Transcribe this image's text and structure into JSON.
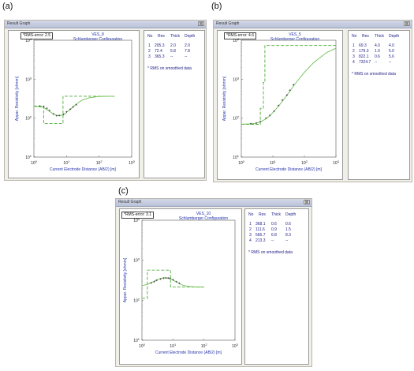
{
  "colors": {
    "curve": "#6bbf4e",
    "model": "#4fae3a",
    "points": "#333333",
    "text_blue": "#2233aa"
  },
  "icons": {
    "close": "close-icon"
  },
  "panels": [
    {
      "letter": "(a)",
      "window_title": "Result Graph",
      "close_glyph": "⊠",
      "rms": "*RMS-error:  2.5",
      "ves_title": "VES_8",
      "config": "Schlumberger Configuration",
      "table": {
        "headers": [
          "No",
          "Res",
          "Thick",
          "Depth"
        ],
        "rows": [
          [
            "1",
            "205.3",
            "2.0",
            "2.0"
          ],
          [
            "2",
            "72.4",
            "5.8",
            "7.8"
          ],
          [
            "3",
            "365.3",
            "--",
            "--"
          ]
        ],
        "note": "* RMS on smoothed data"
      },
      "chart_data": {
        "type": "line",
        "xlabel": "Current Electrode Distance (AB/2) [m]",
        "ylabel": "Appar. Resistivity [ohmm]",
        "x_scale": "log",
        "y_scale": "log",
        "xlim": [
          1,
          1000
        ],
        "ylim": [
          10,
          10000
        ],
        "x_ticks": [
          "10^0",
          "10^1",
          "10^2",
          "10^3"
        ],
        "y_ticks": [
          "10^1",
          "10^2",
          "10^3",
          "10^4"
        ],
        "model_steps": [
          [
            1,
            205.3
          ],
          [
            2.0,
            205.3
          ],
          [
            2.0,
            72.4
          ],
          [
            7.8,
            72.4
          ],
          [
            7.8,
            365.3
          ],
          [
            300,
            365.3
          ]
        ],
        "smooth_curve": [
          [
            1,
            200
          ],
          [
            1.5,
            198
          ],
          [
            2,
            188
          ],
          [
            3,
            150
          ],
          [
            4,
            128
          ],
          [
            5,
            118
          ],
          [
            6,
            115
          ],
          [
            8,
            122
          ],
          [
            10,
            140
          ],
          [
            15,
            185
          ],
          [
            20,
            230
          ],
          [
            30,
            290
          ],
          [
            50,
            335
          ],
          [
            100,
            360
          ],
          [
            300,
            365
          ]
        ],
        "observed": [
          [
            1.5,
            205
          ],
          [
            2,
            200
          ],
          [
            2.5,
            180
          ],
          [
            3,
            158
          ],
          [
            4,
            128
          ],
          [
            5,
            115
          ],
          [
            6,
            118
          ],
          [
            8,
            125
          ],
          [
            10,
            145
          ],
          [
            13,
            170
          ],
          [
            16,
            195
          ],
          [
            20,
            220
          ]
        ]
      }
    },
    {
      "letter": "(b)",
      "window_title": "Result Graph",
      "close_glyph": "⊠",
      "rms": "*RMS-error:  4.6",
      "ves_title": "VES_5",
      "config": "Schlumberger Configuration",
      "table": {
        "headers": [
          "No",
          "Res",
          "Thick",
          "Depth"
        ],
        "rows": [
          [
            "1",
            "69.3",
            "4.0",
            "4.0"
          ],
          [
            "2",
            "179.3",
            "1.0",
            "5.0"
          ],
          [
            "3",
            "822.1",
            "0.6",
            "5.6"
          ],
          [
            "4",
            "7324.7",
            "--",
            "--"
          ]
        ],
        "note": "* RMS on smoothed data"
      },
      "chart_data": {
        "type": "line",
        "xlabel": "Current Electrode Distance (AB/2) [m]",
        "ylabel": "Appar. Resistivity [ohmm]",
        "x_scale": "log",
        "y_scale": "log",
        "xlim": [
          1,
          1000
        ],
        "ylim": [
          10,
          10000
        ],
        "x_ticks": [
          "10^0",
          "10^1",
          "10^2",
          "10^3"
        ],
        "y_ticks": [
          "10^1",
          "10^2",
          "10^3",
          "10^4"
        ],
        "model_steps": [
          [
            1,
            69.3
          ],
          [
            4.0,
            69.3
          ],
          [
            4.0,
            179.3
          ],
          [
            5.0,
            179.3
          ],
          [
            5.0,
            822.1
          ],
          [
            5.6,
            822.1
          ],
          [
            5.6,
            7324.7
          ],
          [
            1000,
            7324.7
          ]
        ],
        "smooth_curve": [
          [
            1,
            70
          ],
          [
            2,
            71
          ],
          [
            3,
            74
          ],
          [
            4,
            80
          ],
          [
            6,
            95
          ],
          [
            8,
            115
          ],
          [
            10,
            140
          ],
          [
            15,
            200
          ],
          [
            20,
            270
          ],
          [
            30,
            420
          ],
          [
            50,
            750
          ],
          [
            100,
            1500
          ],
          [
            200,
            2700
          ],
          [
            500,
            4800
          ],
          [
            1000,
            6200
          ]
        ],
        "observed": [
          [
            2,
            72
          ],
          [
            3,
            75
          ],
          [
            4,
            82
          ],
          [
            6,
            100
          ],
          [
            8,
            118
          ],
          [
            11,
            150
          ],
          [
            15,
            210
          ],
          [
            20,
            290
          ],
          [
            28,
            390
          ],
          [
            35,
            520
          ],
          [
            45,
            720
          ]
        ]
      }
    },
    {
      "letter": "(c)",
      "window_title": "Result Graph",
      "close_glyph": "⊠",
      "rms": "*RMS-error:  3.1",
      "ves_title": "VES_10",
      "config": "Schlumberger Configuration",
      "table": {
        "headers": [
          "No",
          "Res",
          "Thick",
          "Depth"
        ],
        "rows": [
          [
            "1",
            "368.1",
            "0.6",
            "0.6"
          ],
          [
            "2",
            "111.6",
            "0.9",
            "1.5"
          ],
          [
            "3",
            "566.7",
            "6.8",
            "8.3"
          ],
          [
            "4",
            "213.3",
            "--",
            "--"
          ]
        ],
        "note": "* RMS on smoothed data"
      },
      "chart_data": {
        "type": "line",
        "xlabel": "Current Electrode Distance (AB/2) [m]",
        "ylabel": "Appar. Resistivity [ohmm]",
        "x_scale": "log",
        "y_scale": "log",
        "xlim": [
          1,
          1000
        ],
        "ylim": [
          10,
          10000
        ],
        "x_ticks": [
          "10^0",
          "10^1",
          "10^2",
          "10^3"
        ],
        "y_ticks": [
          "10^1",
          "10^2",
          "10^3",
          "10^4"
        ],
        "model_steps": [
          [
            1,
            111.6
          ],
          [
            1.5,
            111.6
          ],
          [
            1.5,
            566.7
          ],
          [
            8.3,
            566.7
          ],
          [
            8.3,
            213.3
          ],
          [
            100,
            213.3
          ]
        ],
        "smooth_curve": [
          [
            1,
            230
          ],
          [
            1.5,
            250
          ],
          [
            2,
            275
          ],
          [
            3,
            320
          ],
          [
            4,
            350
          ],
          [
            5,
            365
          ],
          [
            6,
            365
          ],
          [
            8,
            350
          ],
          [
            10,
            320
          ],
          [
            15,
            270
          ],
          [
            20,
            240
          ],
          [
            30,
            222
          ],
          [
            50,
            215
          ],
          [
            100,
            213
          ]
        ],
        "observed": [
          [
            2,
            270
          ],
          [
            2.5,
            290
          ],
          [
            3,
            315
          ],
          [
            4,
            340
          ],
          [
            5,
            355
          ],
          [
            6,
            360
          ],
          [
            7,
            360
          ],
          [
            8,
            350
          ],
          [
            10,
            325
          ],
          [
            13,
            290
          ],
          [
            16,
            265
          ]
        ]
      }
    }
  ]
}
